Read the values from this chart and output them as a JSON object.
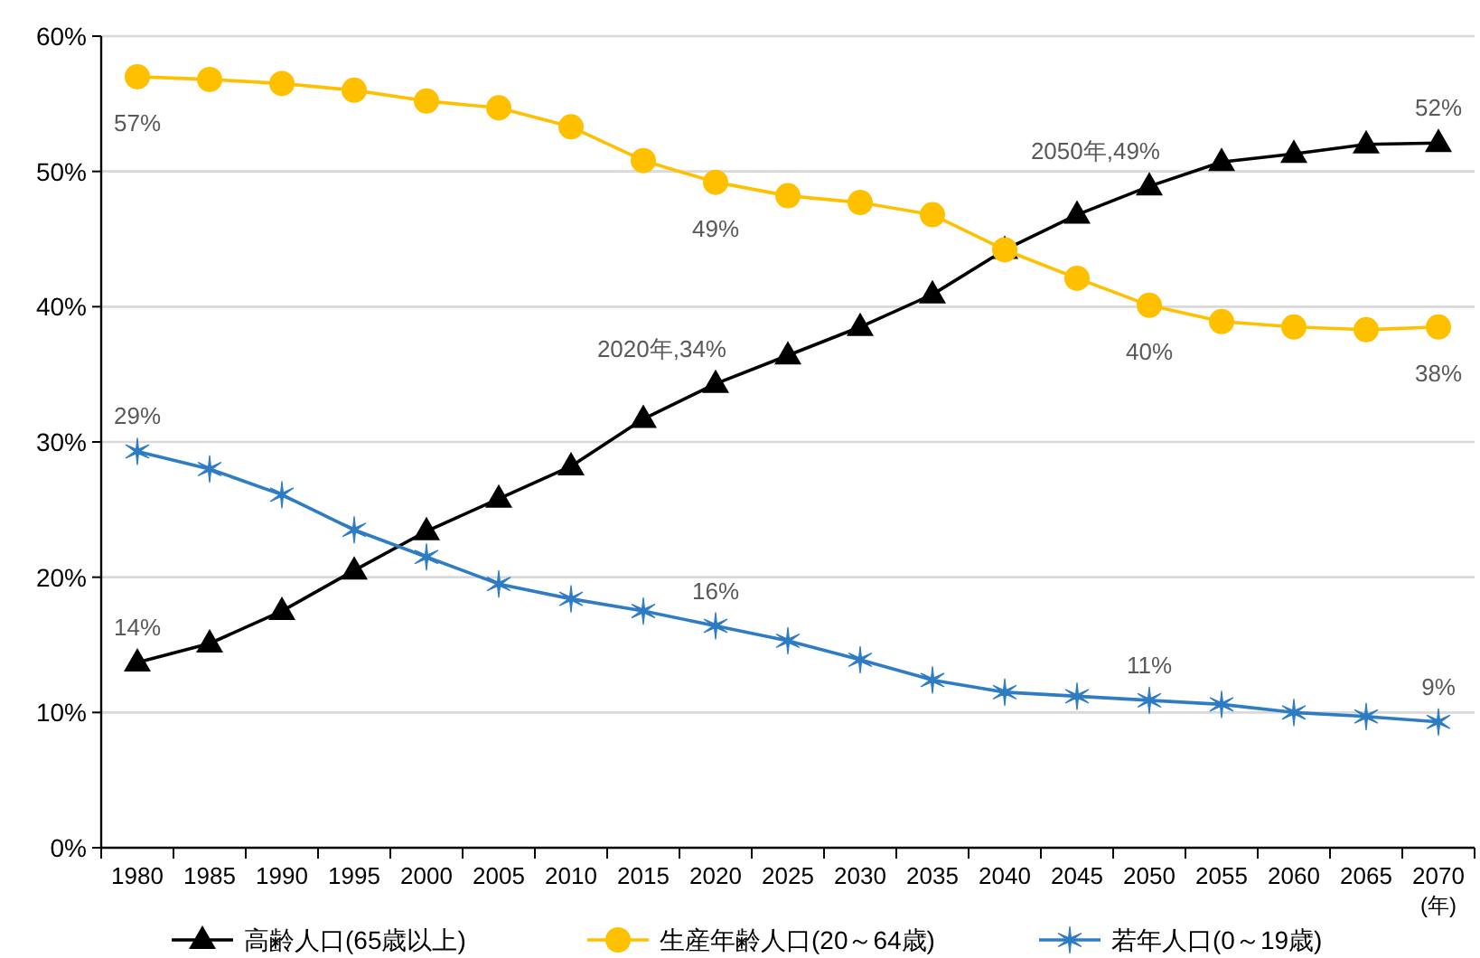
{
  "chart_data": {
    "type": "line",
    "categories": [
      "1980",
      "1985",
      "1990",
      "1995",
      "2000",
      "2005",
      "2010",
      "2015",
      "2020",
      "2025",
      "2030",
      "2035",
      "2040",
      "2045",
      "2050",
      "2055",
      "2060",
      "2065",
      "2070"
    ],
    "series": [
      {
        "name": "高齢人口(65歳以上)",
        "color": "#000000",
        "marker": "triangle",
        "values": [
          13.7,
          15.1,
          17.5,
          20.5,
          23.4,
          25.8,
          28.2,
          31.7,
          34.3,
          36.4,
          38.5,
          40.9,
          44.2,
          46.8,
          48.9,
          50.7,
          51.3,
          52.0,
          52.1
        ]
      },
      {
        "name": "生産年齢人口(20～64歳)",
        "color": "#ffc000",
        "marker": "circle",
        "values": [
          57.0,
          56.8,
          56.5,
          56.0,
          55.2,
          54.7,
          53.3,
          50.8,
          49.2,
          48.2,
          47.7,
          46.8,
          44.2,
          42.1,
          40.1,
          38.9,
          38.5,
          38.3,
          38.5
        ]
      },
      {
        "name": "若年人口(0～19歳)",
        "color": "#2e7cc4",
        "marker": "cross",
        "values": [
          29.3,
          28.0,
          26.1,
          23.5,
          21.5,
          19.5,
          18.4,
          17.5,
          16.4,
          15.3,
          13.9,
          12.4,
          11.5,
          11.2,
          10.9,
          10.6,
          10.0,
          9.7,
          9.3
        ]
      }
    ],
    "xlabel": "(年)",
    "ylim": [
      0,
      60
    ],
    "yticks": [
      {
        "value": 0,
        "label": "0%"
      },
      {
        "value": 10,
        "label": "10%"
      },
      {
        "value": 20,
        "label": "20%"
      },
      {
        "value": 30,
        "label": "30%"
      },
      {
        "value": 40,
        "label": "40%"
      },
      {
        "value": 50,
        "label": "50%"
      },
      {
        "value": 60,
        "label": "60%"
      }
    ],
    "grid": "y",
    "legend": "bottom",
    "annotations": [
      {
        "text": "57%",
        "x": "1980",
        "y": 57.0
      },
      {
        "text": "49%",
        "x": "2020",
        "y": 49.2
      },
      {
        "text": "40%",
        "x": "2050",
        "y": 40.1
      },
      {
        "text": "38%",
        "x": "2070",
        "y": 38.5
      },
      {
        "text": "14%",
        "x": "1980",
        "y": 13.7
      },
      {
        "text": "2020年,34%",
        "x": "2020",
        "y": 34.3
      },
      {
        "text": "2050年,49%",
        "x": "2050",
        "y": 48.9
      },
      {
        "text": "52%",
        "x": "2070",
        "y": 52.1
      },
      {
        "text": "29%",
        "x": "1980",
        "y": 29.3
      },
      {
        "text": "16%",
        "x": "2020",
        "y": 16.4
      },
      {
        "text": "11%",
        "x": "2050",
        "y": 10.9
      },
      {
        "text": "9%",
        "x": "2070",
        "y": 9.3
      }
    ]
  }
}
